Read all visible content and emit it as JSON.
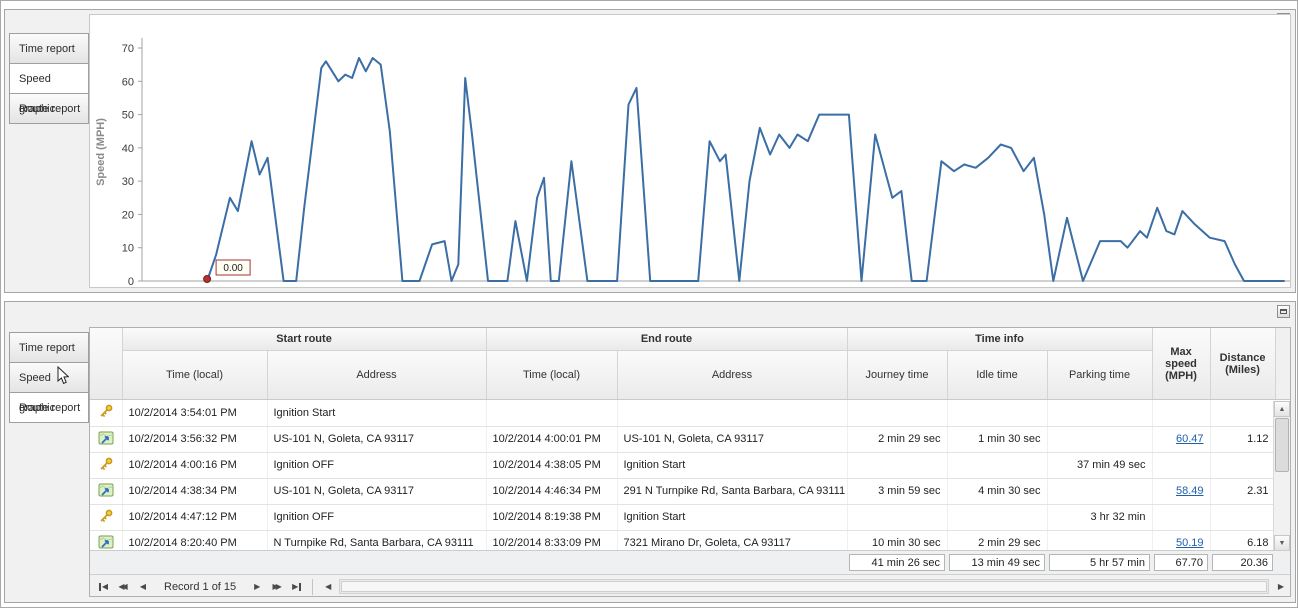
{
  "colors": {
    "line": "#3b6ea5",
    "link": "#1f5fae",
    "marker": "#a22222"
  },
  "top_panel": {
    "tabs": [
      {
        "label": "Time report",
        "selected": false
      },
      {
        "label": "Speed graphic",
        "selected": true
      },
      {
        "label": "Route report",
        "selected": false
      }
    ],
    "chart_data": {
      "type": "line",
      "ylabel": "Speed (MPH)",
      "ylim": [
        0,
        70
      ],
      "yticks": [
        0,
        10,
        20,
        30,
        40,
        50,
        60,
        70
      ],
      "line_color": "#3b6ea5",
      "grid": false,
      "annotation": {
        "x": 5.7,
        "y": 0,
        "label": "0.00"
      },
      "x": [
        5.7,
        6.5,
        7.7,
        8.4,
        9.6,
        10.3,
        11.0,
        12.4,
        13.5,
        14.2,
        15.7,
        16.1,
        17.2,
        17.8,
        18.4,
        19.0,
        19.6,
        20.2,
        20.9,
        21.7,
        22.8,
        24.3,
        25.4,
        26.5,
        27.1,
        27.7,
        28.3,
        28.9,
        30.3,
        32.0,
        32.7,
        33.7,
        34.6,
        35.2,
        35.8,
        36.5,
        37.6,
        39.0,
        41.6,
        42.6,
        43.3,
        44.5,
        48.7,
        49.7,
        50.6,
        51.1,
        52.3,
        53.2,
        54.1,
        55.0,
        55.8,
        56.7,
        57.4,
        58.3,
        59.3,
        60.7,
        61.9,
        63.0,
        64.2,
        65.7,
        66.5,
        67.4,
        68.7,
        70.0,
        71.1,
        72.0,
        73.0,
        74.1,
        75.2,
        76.1,
        77.2,
        78.1,
        79.0,
        79.8,
        81.0,
        82.4,
        83.9,
        85.7,
        86.3,
        87.4,
        88.0,
        88.9,
        89.7,
        90.4,
        91.1,
        92.2,
        93.5,
        94.8,
        95.7,
        96.5,
        100.0
      ],
      "y": [
        0,
        8,
        25,
        21,
        42,
        32,
        37,
        0,
        0,
        22,
        64,
        66,
        60,
        62,
        61,
        67,
        63,
        67,
        65,
        45,
        0,
        0,
        11,
        12,
        0,
        5,
        61,
        44,
        0,
        0,
        18,
        0,
        25,
        31,
        0,
        0,
        36,
        0,
        0,
        53,
        58,
        0,
        0,
        42,
        36,
        38,
        0,
        30,
        46,
        38,
        44,
        40,
        44,
        42,
        50,
        50,
        50,
        0,
        44,
        25,
        27,
        0,
        0,
        36,
        33,
        35,
        34,
        37,
        41,
        40,
        33,
        37,
        20,
        0,
        19,
        0,
        12,
        12,
        10,
        15,
        13,
        22,
        15,
        14,
        21,
        17,
        13,
        12,
        5,
        0,
        0
      ]
    }
  },
  "bottom_panel": {
    "tabs": [
      {
        "label": "Time report",
        "selected": false
      },
      {
        "label": "Speed graphic",
        "selected": false
      },
      {
        "label": "Route report",
        "selected": true
      }
    ],
    "table": {
      "groups": [
        {
          "label": "Start route",
          "span": 2
        },
        {
          "label": "End route",
          "span": 2
        },
        {
          "label": "Time info",
          "span": 3
        }
      ],
      "columns": [
        "Time (local)",
        "Address",
        "Time (local)",
        "Address",
        "Journey time",
        "Idle time",
        "Parking time",
        "Max speed (MPH)",
        "Distance (Miles)"
      ],
      "rows": [
        {
          "icon": "key",
          "cells": [
            "10/2/2014 3:54:01 PM",
            "Ignition Start",
            "",
            "",
            "",
            "",
            "",
            "",
            ""
          ]
        },
        {
          "icon": "route",
          "cells": [
            "10/2/2014 3:56:32 PM",
            "US-101 N, Goleta, CA 93117",
            "10/2/2014 4:00:01 PM",
            "US-101 N, Goleta, CA 93117",
            "2 min 29 sec",
            "1 min 30 sec",
            "",
            "60.47",
            "1.12"
          ]
        },
        {
          "icon": "key",
          "cells": [
            "10/2/2014 4:00:16 PM",
            "Ignition OFF",
            "10/2/2014 4:38:05 PM",
            "Ignition Start",
            "",
            "",
            "37 min 49 sec",
            "",
            ""
          ]
        },
        {
          "icon": "route",
          "cells": [
            "10/2/2014 4:38:34 PM",
            "US-101 N, Goleta, CA 93117",
            "10/2/2014 4:46:34 PM",
            "291 N Turnpike Rd, Santa Barbara, CA 93111",
            "3 min 59 sec",
            "4 min 30 sec",
            "",
            "58.49",
            "2.31"
          ]
        },
        {
          "icon": "key",
          "cells": [
            "10/2/2014 4:47:12 PM",
            "Ignition OFF",
            "10/2/2014 8:19:38 PM",
            "Ignition Start",
            "",
            "",
            "3 hr 32 min",
            "",
            ""
          ]
        },
        {
          "icon": "route",
          "cells": [
            "10/2/2014 8:20:40 PM",
            "N Turnpike Rd, Santa Barbara, CA 93111",
            "10/2/2014 8:33:09 PM",
            "7321 Mirano Dr, Goleta, CA 93117",
            "10 min 30 sec",
            "2 min 29 sec",
            "",
            "50.19",
            "6.18"
          ]
        }
      ],
      "summary": {
        "journey_time": "41 min 26 sec",
        "idle_time": "13 min 49 sec",
        "parking_time": "5 hr 57 min",
        "max_speed": "67.70",
        "distance": "20.36"
      },
      "pager": {
        "label": "Record 1 of 15"
      }
    }
  }
}
